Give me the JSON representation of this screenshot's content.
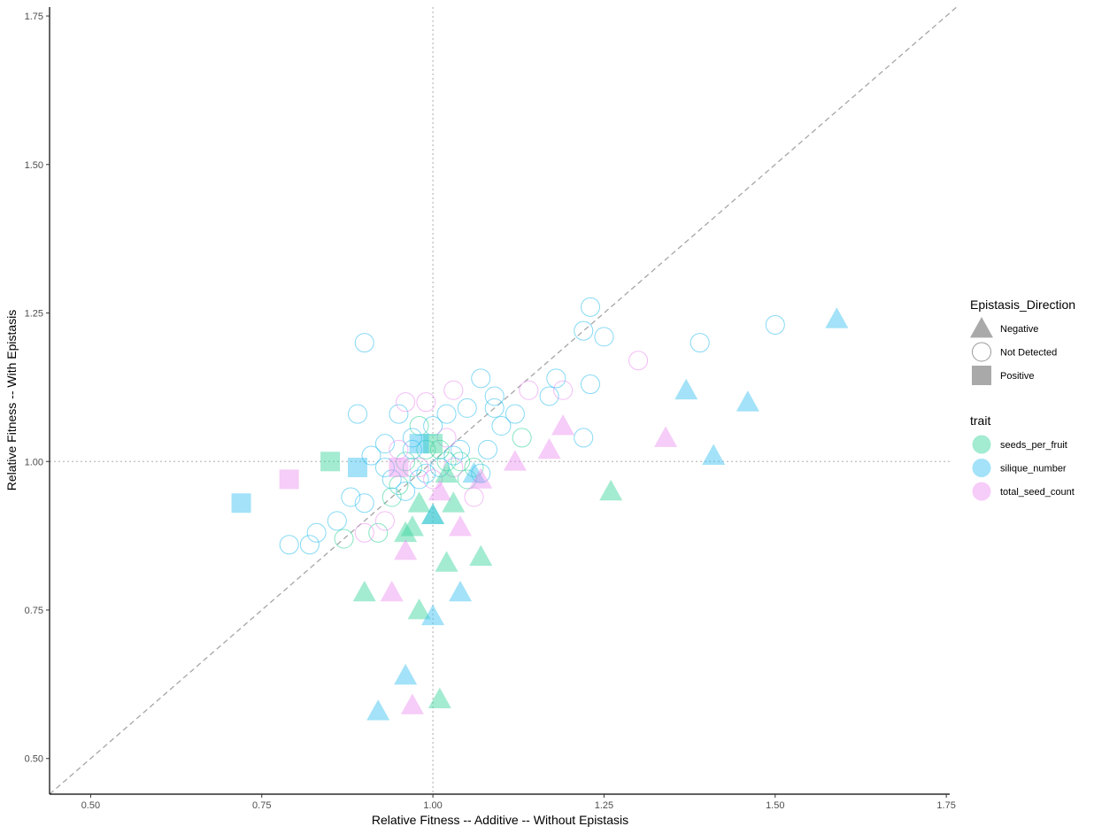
{
  "chart_data": {
    "type": "scatter",
    "xlabel": "Relative Fitness -- Additive -- Without Epistasis",
    "ylabel": "Relative Fitness -- With Epistasis",
    "xlim": [
      0.44,
      1.755
    ],
    "ylim": [
      0.44,
      1.765
    ],
    "xticks": [
      0.5,
      0.75,
      1.0,
      1.25,
      1.5,
      1.75
    ],
    "xtick_labels": [
      "0.50",
      "0.75",
      "1.00",
      "1.25",
      "1.50",
      "1.75"
    ],
    "yticks": [
      0.5,
      0.75,
      1.0,
      1.25,
      1.5,
      1.75
    ],
    "ytick_labels": [
      "0.50",
      "0.75",
      "1.00",
      "1.25",
      "1.50",
      "1.75"
    ],
    "grid": false,
    "reference_lines": {
      "diagonal": "y = x (dashed)",
      "vertical": "x = 1 (dotted)",
      "horizontal": "y = 1 (dotted)"
    },
    "legend_placement": "right",
    "shape_legend": {
      "title": "Epistasis_Direction",
      "entries": [
        {
          "label": "Negative",
          "shape": "triangle"
        },
        {
          "label": "Not Detected",
          "shape": "circle-open"
        },
        {
          "label": "Positive",
          "shape": "square"
        }
      ]
    },
    "color_legend": {
      "title": "trait",
      "entries": [
        {
          "label": "seeds_per_fruit",
          "color": "#34d399"
        },
        {
          "label": "silique_number",
          "color": "#33bfef"
        },
        {
          "label": "total_seed_count",
          "color": "#eb8ff0"
        }
      ]
    },
    "series": [
      {
        "trait": "seeds_per_fruit",
        "color": "#34d399",
        "negative": [
          [
            0.96,
            0.88
          ],
          [
            0.98,
            0.93
          ],
          [
            1.0,
            0.91
          ],
          [
            1.03,
            0.93
          ],
          [
            1.02,
            0.83
          ],
          [
            1.07,
            0.84
          ],
          [
            0.9,
            0.78
          ],
          [
            0.98,
            0.75
          ],
          [
            1.01,
            0.6
          ],
          [
            1.26,
            0.95
          ],
          [
            1.02,
            0.98
          ],
          [
            0.97,
            0.89
          ]
        ],
        "positive": [
          [
            0.85,
            1.0
          ],
          [
            1.0,
            1.03
          ]
        ],
        "not_detected": [
          [
            0.92,
            0.88
          ],
          [
            0.95,
            0.96
          ],
          [
            0.97,
            0.99
          ],
          [
            0.98,
            1.06
          ],
          [
            1.01,
            1.02
          ],
          [
            1.04,
            1.0
          ],
          [
            1.05,
            0.97
          ],
          [
            0.94,
            0.94
          ],
          [
            1.13,
            1.04
          ],
          [
            0.87,
            0.87
          ],
          [
            0.99,
            1.02
          ],
          [
            1.02,
            1.0
          ],
          [
            0.96,
            1.0
          ],
          [
            1.06,
            0.99
          ]
        ]
      },
      {
        "trait": "silique_number",
        "color": "#33bfef",
        "negative": [
          [
            0.92,
            0.58
          ],
          [
            0.96,
            0.64
          ],
          [
            1.0,
            0.74
          ],
          [
            1.04,
            0.78
          ],
          [
            1.37,
            1.12
          ],
          [
            1.41,
            1.01
          ],
          [
            1.46,
            1.1
          ],
          [
            1.59,
            1.24
          ],
          [
            1.06,
            0.98
          ],
          [
            1.0,
            0.91
          ]
        ],
        "positive": [
          [
            0.72,
            0.93
          ],
          [
            0.89,
            0.99
          ],
          [
            0.98,
            1.03
          ]
        ],
        "not_detected": [
          [
            0.79,
            0.86
          ],
          [
            0.82,
            0.86
          ],
          [
            0.83,
            0.88
          ],
          [
            0.86,
            0.9
          ],
          [
            0.88,
            0.94
          ],
          [
            0.9,
            0.93
          ],
          [
            0.9,
            1.2
          ],
          [
            0.89,
            1.08
          ],
          [
            0.93,
            1.03
          ],
          [
            0.95,
            1.08
          ],
          [
            1.07,
            1.14
          ],
          [
            1.09,
            1.11
          ],
          [
            1.12,
            1.08
          ],
          [
            1.17,
            1.11
          ],
          [
            1.18,
            1.14
          ],
          [
            1.22,
            1.22
          ],
          [
            1.23,
            1.26
          ],
          [
            1.25,
            1.21
          ],
          [
            1.23,
            1.13
          ],
          [
            1.22,
            1.04
          ],
          [
            1.39,
            1.2
          ],
          [
            1.5,
            1.23
          ],
          [
            0.98,
            0.97
          ],
          [
            0.97,
            1.02
          ],
          [
            1.01,
            0.99
          ],
          [
            1.03,
            1.01
          ],
          [
            1.04,
            1.02
          ],
          [
            1.05,
            1.09
          ],
          [
            1.08,
            1.02
          ],
          [
            1.1,
            1.06
          ],
          [
            0.94,
            0.97
          ],
          [
            0.96,
            0.95
          ],
          [
            0.91,
            1.01
          ],
          [
            1.0,
            1.06
          ],
          [
            1.02,
            1.08
          ],
          [
            0.99,
            0.98
          ],
          [
            1.07,
            0.98
          ],
          [
            1.09,
            1.09
          ],
          [
            0.93,
            0.99
          ],
          [
            0.97,
            1.04
          ]
        ]
      },
      {
        "trait": "total_seed_count",
        "color": "#eb8ff0",
        "negative": [
          [
            0.97,
            0.59
          ],
          [
            0.94,
            0.78
          ],
          [
            0.96,
            0.85
          ],
          [
            1.04,
            0.89
          ],
          [
            1.07,
            0.97
          ],
          [
            1.12,
            1.0
          ],
          [
            1.17,
            1.02
          ],
          [
            1.19,
            1.06
          ],
          [
            1.34,
            1.04
          ],
          [
            1.01,
            0.95
          ]
        ],
        "positive": [
          [
            0.79,
            0.97
          ],
          [
            0.95,
            0.99
          ]
        ],
        "not_detected": [
          [
            0.96,
            1.1
          ],
          [
            0.99,
            1.1
          ],
          [
            1.03,
            1.12
          ],
          [
            1.3,
            1.17
          ],
          [
            1.19,
            1.12
          ],
          [
            1.14,
            1.12
          ],
          [
            0.9,
            0.88
          ],
          [
            0.93,
            0.9
          ],
          [
            0.98,
            0.99
          ],
          [
            1.0,
            0.97
          ],
          [
            1.02,
            1.04
          ],
          [
            1.06,
            0.94
          ],
          [
            0.95,
            1.02
          ],
          [
            1.03,
            0.99
          ]
        ]
      }
    ]
  }
}
